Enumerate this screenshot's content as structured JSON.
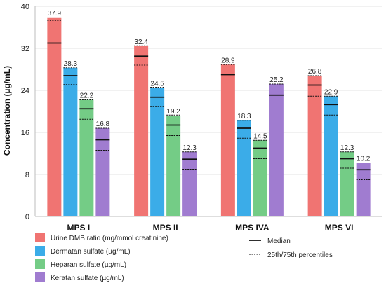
{
  "chart_data": {
    "type": "bar",
    "title": "",
    "xlabel": "",
    "ylabel": "Concentration (µg/mL)",
    "ylim": [
      0,
      40
    ],
    "yticks": [
      0,
      8,
      16,
      24,
      32,
      40
    ],
    "grid": "horizontal",
    "legend_position": "bottom",
    "categories": [
      "MPS I",
      "MPS II",
      "MPS IVA",
      "MPS VI"
    ],
    "series": [
      {
        "name": "Urine DMB ratio (mg/mmol creatinine)",
        "color": "#f07472",
        "values": [
          37.9,
          32.4,
          28.9,
          26.8
        ],
        "median": [
          33.0,
          30.5,
          27.0,
          25.0
        ],
        "p25": [
          29.8,
          28.8,
          25.0,
          22.9
        ],
        "p75": [
          37.3,
          32.5,
          28.9,
          26.8
        ]
      },
      {
        "name": "Dermatan sulfate (µg/mL)",
        "color": "#3bace8",
        "values": [
          28.3,
          24.5,
          18.3,
          22.9
        ],
        "median": [
          26.8,
          22.7,
          16.8,
          21.3
        ],
        "p25": [
          25.1,
          20.9,
          14.9,
          19.3
        ],
        "p75": [
          28.3,
          24.6,
          18.3,
          22.9
        ]
      },
      {
        "name": "Heparan sulfate (µg/mL)",
        "color": "#74cc86",
        "values": [
          22.2,
          19.2,
          14.5,
          12.3
        ],
        "median": [
          20.5,
          17.4,
          13.0,
          11.0
        ],
        "p25": [
          18.5,
          15.4,
          11.0,
          9.2
        ],
        "p75": [
          22.2,
          19.3,
          14.5,
          12.3
        ]
      },
      {
        "name": "Keratan sulfate (µg/mL)",
        "color": "#a07cd0",
        "values": [
          16.8,
          12.3,
          25.2,
          10.2
        ],
        "median": [
          14.6,
          10.9,
          23.1,
          8.9
        ],
        "p25": [
          12.6,
          9.0,
          21.0,
          7.0
        ],
        "p75": [
          16.8,
          12.3,
          25.2,
          10.2
        ]
      }
    ],
    "legend_extra": [
      "Median",
      "25th/75th percentiles"
    ]
  }
}
